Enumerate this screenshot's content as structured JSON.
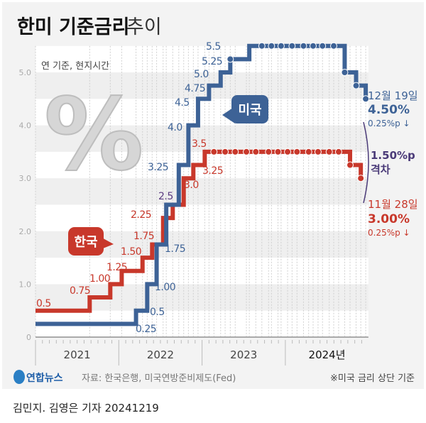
{
  "title_bold": "한미 기준금리",
  "title_light": "추이",
  "note_basis": "연 기준, 현지시간",
  "source": "자료: 한국은행, 미국연방준비제도(Fed)",
  "footnote": "※미국 금리 상단 기준",
  "logo_text": "연합뉴스",
  "byline": "김민지. 김영은 기자  20241219",
  "colors": {
    "us": "#3d6296",
    "korea": "#c8382b",
    "gap": "#4a3a78",
    "background": "#f3f3f3"
  },
  "chart_data": {
    "type": "line",
    "step": true,
    "ylim": [
      0,
      5.5
    ],
    "yticks": [
      "0",
      "1.0",
      "2.0",
      "3.0",
      "4.0",
      "5.0"
    ],
    "xlim": [
      "2021-01-01",
      "2024-12-31"
    ],
    "xticks": [
      "2021",
      "2022",
      "2023",
      "2024년"
    ],
    "grid": true,
    "series": [
      {
        "name": "미국",
        "color": "#3d6296",
        "points": [
          [
            "2021-01-01",
            0.25
          ],
          [
            "2022-03-16",
            0.5
          ],
          [
            "2022-05-04",
            1.0
          ],
          [
            "2022-06-15",
            1.75
          ],
          [
            "2022-07-27",
            2.5
          ],
          [
            "2022-09-21",
            3.25
          ],
          [
            "2022-11-02",
            4.0
          ],
          [
            "2022-12-14",
            4.5
          ],
          [
            "2023-02-01",
            4.75
          ],
          [
            "2023-03-22",
            5.0
          ],
          [
            "2023-05-03",
            5.25
          ],
          [
            "2023-07-26",
            5.5
          ],
          [
            "2024-09-18",
            5.0
          ],
          [
            "2024-11-07",
            4.75
          ],
          [
            "2024-12-19",
            4.5
          ]
        ],
        "hold_dots": [
          "2023-05-03",
          "2023-09-20",
          "2023-11-01",
          "2023-12-13",
          "2024-01-31",
          "2024-03-20",
          "2024-05-01",
          "2024-06-12",
          "2024-07-31",
          "2024-09-18",
          "2024-11-07",
          "2024-12-19"
        ],
        "labels": [
          "0.25",
          "0.5",
          "1.00",
          "1.75",
          "2.5",
          "3.25",
          "4.0",
          "4.5",
          "4.75",
          "5.0",
          "5.25",
          "5.5"
        ],
        "end_date": "12월 19일",
        "end_value": "4.50%",
        "end_change": "0.25%p ↓"
      },
      {
        "name": "한국",
        "color": "#c8382b",
        "points": [
          [
            "2021-01-01",
            0.5
          ],
          [
            "2021-08-26",
            0.75
          ],
          [
            "2021-11-25",
            1.0
          ],
          [
            "2022-01-14",
            1.25
          ],
          [
            "2022-04-14",
            1.5
          ],
          [
            "2022-05-26",
            1.75
          ],
          [
            "2022-07-13",
            2.25
          ],
          [
            "2022-08-25",
            2.5
          ],
          [
            "2022-10-12",
            3.0
          ],
          [
            "2022-11-24",
            3.25
          ],
          [
            "2023-01-13",
            3.5
          ],
          [
            "2024-10-11",
            3.25
          ],
          [
            "2024-11-28",
            3.0
          ]
        ],
        "hold_dots": [
          "2023-02-23",
          "2023-04-11",
          "2023-05-25",
          "2023-07-13",
          "2023-08-24",
          "2023-10-19",
          "2023-11-30",
          "2024-01-11",
          "2024-02-22",
          "2024-04-12",
          "2024-05-23",
          "2024-07-11",
          "2024-08-22",
          "2024-10-11",
          "2024-11-28"
        ],
        "labels": [
          "0.5",
          "0.75",
          "1.00",
          "1.25",
          "1.50",
          "1.75",
          "2.25",
          "3.0",
          "3.25",
          "3.5"
        ],
        "end_date": "11월 28일",
        "end_value": "3.00%",
        "end_change": "0.25%p ↓"
      }
    ],
    "annotations": {
      "gap_value": "1.50%p",
      "gap_label": "격차",
      "shared_label": "2.5"
    }
  }
}
